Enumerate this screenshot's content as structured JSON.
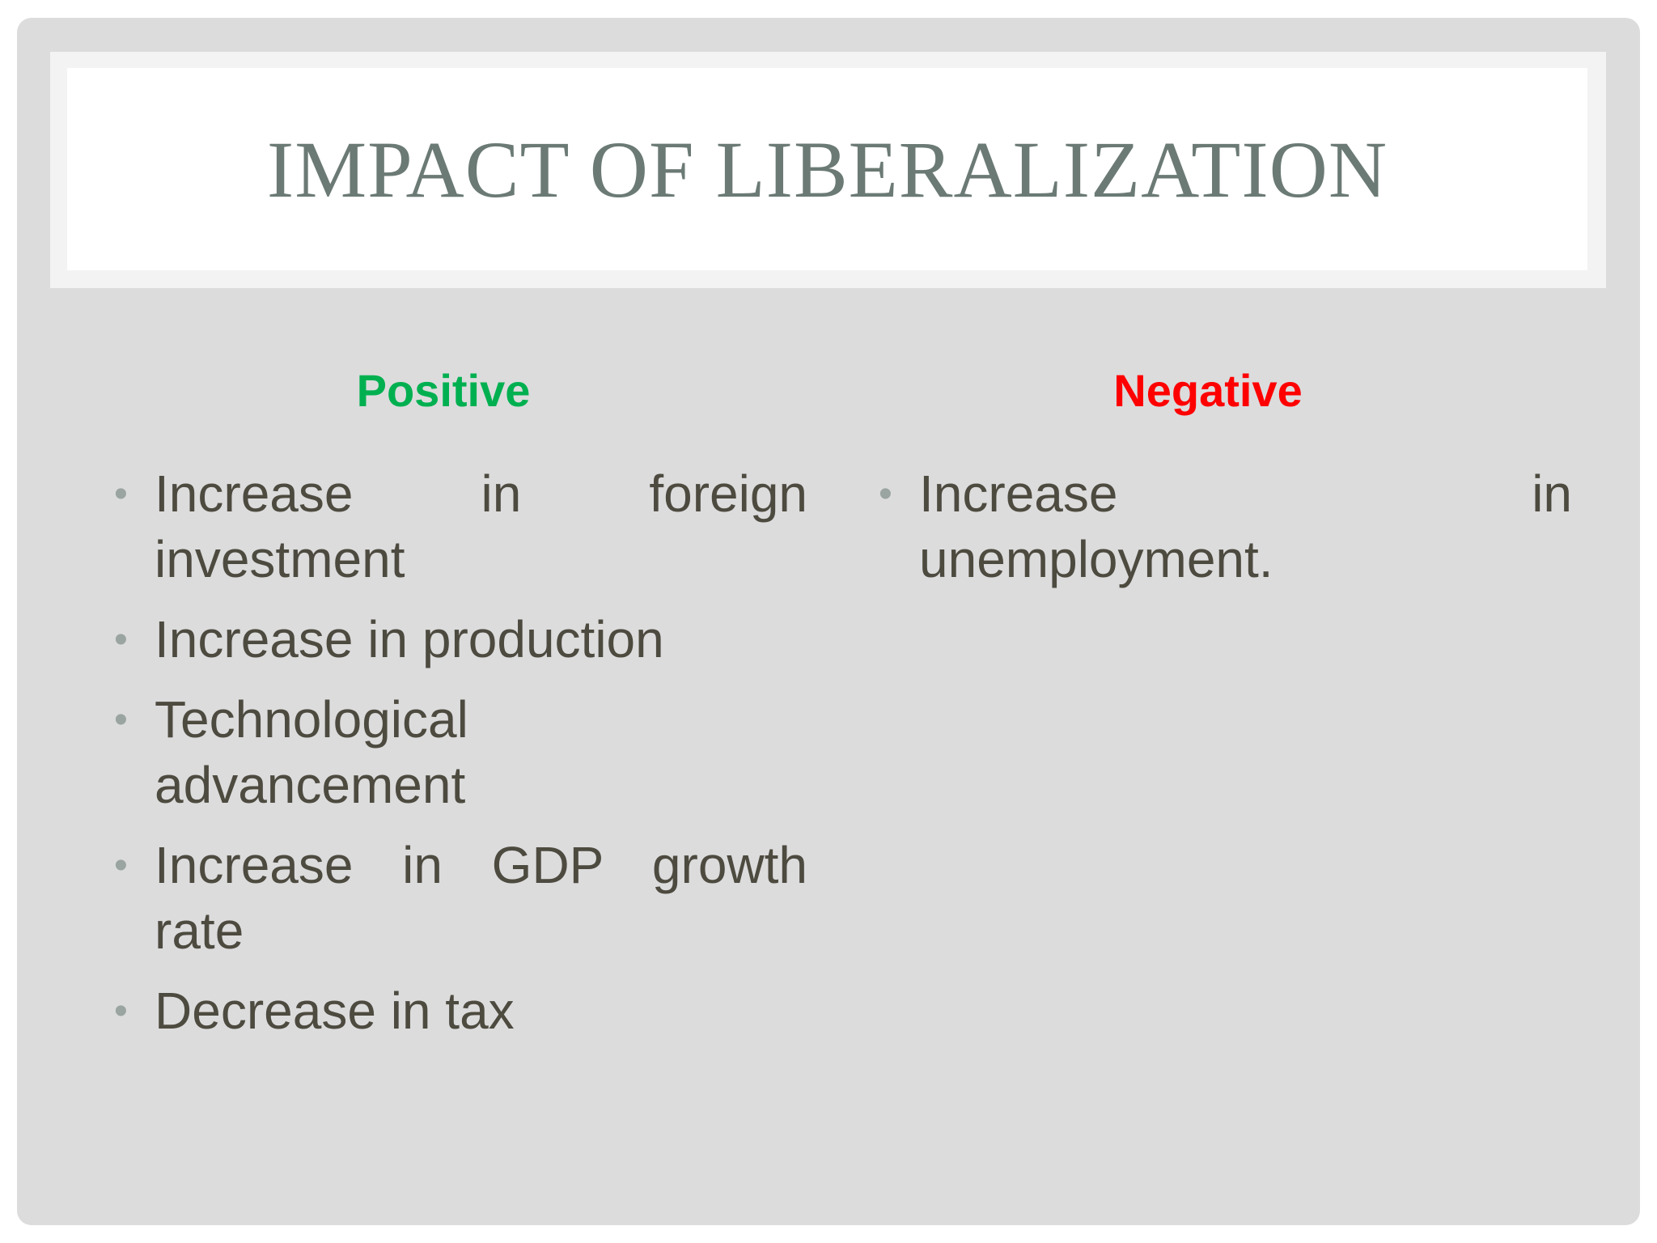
{
  "slide": {
    "title": "IMPACT OF LIBERALIZATION"
  },
  "columns": {
    "positive": {
      "heading": "Positive",
      "heading_color": "#00b050",
      "items": [
        {
          "line1": "Increase in foreign",
          "line2": "investment"
        },
        {
          "line1": "Increase in production",
          "line2": ""
        },
        {
          "line1": "Technological",
          "line2": "advancement"
        },
        {
          "line1": "Increase in GDP growth",
          "line2": "rate"
        },
        {
          "line1": "Decrease in tax",
          "line2": ""
        }
      ]
    },
    "negative": {
      "heading": "Negative",
      "heading_color": "#ff0000",
      "items": [
        {
          "line1": "Increase in",
          "line2": "unemployment."
        }
      ]
    }
  },
  "bullet_glyph": "•"
}
